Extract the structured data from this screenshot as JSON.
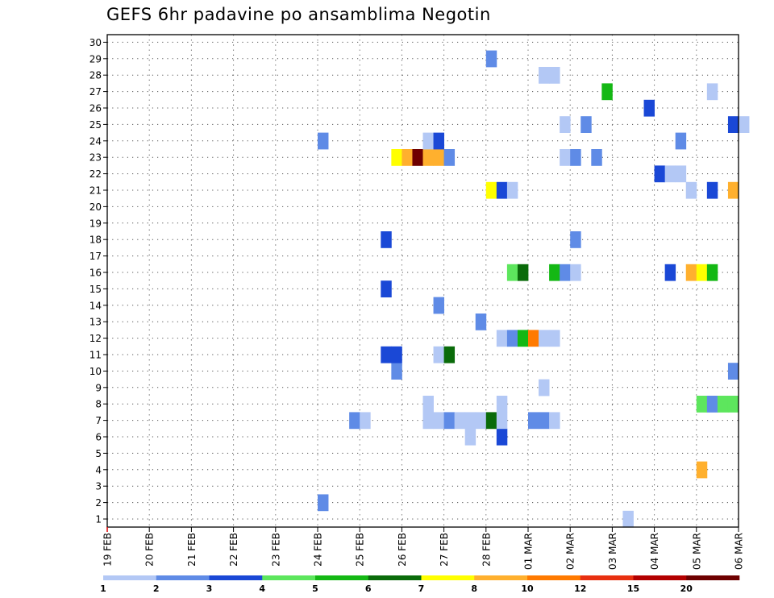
{
  "chart_data": {
    "type": "heatmap",
    "title": "GEFS 6hr padavine po ansamblima Negotin",
    "y_ticks": [
      "1",
      "2",
      "3",
      "4",
      "5",
      "6",
      "7",
      "8",
      "9",
      "10",
      "11",
      "12",
      "13",
      "14",
      "15",
      "16",
      "17",
      "18",
      "19",
      "20",
      "21",
      "22",
      "23",
      "24",
      "25",
      "26",
      "27",
      "28",
      "29",
      "30"
    ],
    "y_range": [
      0,
      30.5
    ],
    "x_ticks": [
      "19 FEB",
      "20 FEB",
      "21 FEB",
      "22 FEB",
      "23 FEB",
      "24 FEB",
      "25 FEB",
      "26 FEB",
      "27 FEB",
      "28 FEB",
      "01 MAR",
      "02 MAR",
      "03 MAR",
      "04 MAR",
      "05 MAR",
      "06 MAR"
    ],
    "x_range_days": [
      0,
      15
    ],
    "step_days": 0.25,
    "grid": true,
    "colorbar": {
      "ticks": [
        "1",
        "2",
        "3",
        "4",
        "5",
        "6",
        "7",
        "8",
        "10",
        "12",
        "15",
        "20"
      ],
      "colors": [
        "#b3c8f5",
        "#5f8be6",
        "#1a48d6",
        "#5de65d",
        "#14b814",
        "#0a6b0a",
        "#ffff00",
        "#ffb02e",
        "#ff7a00",
        "#e83010",
        "#b30000",
        "#6e0000"
      ]
    },
    "cells": [
      {
        "m": 1,
        "t": 12.25,
        "c": 0
      },
      {
        "m": 2,
        "t": 5.0,
        "c": 1
      },
      {
        "m": 4,
        "t": 14.0,
        "c": 7
      },
      {
        "m": 6,
        "t": 9.25,
        "c": 2
      },
      {
        "m": 6,
        "t": 8.5,
        "c": 0
      },
      {
        "m": 7,
        "t": 5.75,
        "c": 1
      },
      {
        "m": 7,
        "t": 6.0,
        "c": 0
      },
      {
        "m": 7,
        "t": 7.5,
        "c": 0
      },
      {
        "m": 7,
        "t": 7.75,
        "c": 0
      },
      {
        "m": 7,
        "t": 8.0,
        "c": 1
      },
      {
        "m": 7,
        "t": 8.25,
        "c": 0
      },
      {
        "m": 7,
        "t": 8.5,
        "c": 0
      },
      {
        "m": 7,
        "t": 8.75,
        "c": 0
      },
      {
        "m": 7,
        "t": 9.0,
        "c": 5
      },
      {
        "m": 7,
        "t": 9.25,
        "c": 0
      },
      {
        "m": 7,
        "t": 10.0,
        "c": 1
      },
      {
        "m": 7,
        "t": 10.25,
        "c": 1
      },
      {
        "m": 7,
        "t": 10.5,
        "c": 0
      },
      {
        "m": 8,
        "t": 7.5,
        "c": 0
      },
      {
        "m": 8,
        "t": 9.25,
        "c": 0
      },
      {
        "m": 8,
        "t": 14.0,
        "c": 3
      },
      {
        "m": 8,
        "t": 14.25,
        "c": 1
      },
      {
        "m": 8,
        "t": 14.5,
        "c": 3
      },
      {
        "m": 8,
        "t": 14.75,
        "c": 3
      },
      {
        "m": 9,
        "t": 10.25,
        "c": 0
      },
      {
        "m": 10,
        "t": 6.75,
        "c": 1
      },
      {
        "m": 10,
        "t": 14.75,
        "c": 1
      },
      {
        "m": 11,
        "t": 6.5,
        "c": 2
      },
      {
        "m": 11,
        "t": 6.75,
        "c": 2
      },
      {
        "m": 11,
        "t": 7.75,
        "c": 0
      },
      {
        "m": 11,
        "t": 8.0,
        "c": 5
      },
      {
        "m": 12,
        "t": 9.25,
        "c": 0
      },
      {
        "m": 12,
        "t": 9.5,
        "c": 1
      },
      {
        "m": 12,
        "t": 9.75,
        "c": 4
      },
      {
        "m": 12,
        "t": 10.0,
        "c": 8
      },
      {
        "m": 12,
        "t": 10.25,
        "c": 0
      },
      {
        "m": 12,
        "t": 10.5,
        "c": 0
      },
      {
        "m": 13,
        "t": 8.75,
        "c": 1
      },
      {
        "m": 14,
        "t": 7.75,
        "c": 1
      },
      {
        "m": 15,
        "t": 6.5,
        "c": 2
      },
      {
        "m": 16,
        "t": 9.5,
        "c": 3
      },
      {
        "m": 16,
        "t": 9.75,
        "c": 5
      },
      {
        "m": 16,
        "t": 10.5,
        "c": 4
      },
      {
        "m": 16,
        "t": 10.75,
        "c": 1
      },
      {
        "m": 16,
        "t": 11.0,
        "c": 0
      },
      {
        "m": 16,
        "t": 13.25,
        "c": 2
      },
      {
        "m": 16,
        "t": 13.75,
        "c": 7
      },
      {
        "m": 16,
        "t": 14.0,
        "c": 6
      },
      {
        "m": 16,
        "t": 14.25,
        "c": 4
      },
      {
        "m": 18,
        "t": 6.5,
        "c": 2
      },
      {
        "m": 18,
        "t": 11.0,
        "c": 1
      },
      {
        "m": 21,
        "t": 9.0,
        "c": 6
      },
      {
        "m": 21,
        "t": 9.25,
        "c": 2
      },
      {
        "m": 21,
        "t": 9.5,
        "c": 0
      },
      {
        "m": 21,
        "t": 13.75,
        "c": 0
      },
      {
        "m": 21,
        "t": 14.25,
        "c": 2
      },
      {
        "m": 21,
        "t": 14.75,
        "c": 7
      },
      {
        "m": 22,
        "t": 13.0,
        "c": 2
      },
      {
        "m": 22,
        "t": 13.25,
        "c": 0
      },
      {
        "m": 22,
        "t": 13.5,
        "c": 0
      },
      {
        "m": 23,
        "t": 6.75,
        "c": 6
      },
      {
        "m": 23,
        "t": 7.0,
        "c": 7
      },
      {
        "m": 23,
        "t": 7.25,
        "c": 11
      },
      {
        "m": 23,
        "t": 7.5,
        "c": 7
      },
      {
        "m": 23,
        "t": 7.75,
        "c": 7
      },
      {
        "m": 23,
        "t": 8.0,
        "c": 1
      },
      {
        "m": 23,
        "t": 10.75,
        "c": 0
      },
      {
        "m": 23,
        "t": 11.0,
        "c": 1
      },
      {
        "m": 23,
        "t": 11.5,
        "c": 1
      },
      {
        "m": 24,
        "t": 5.0,
        "c": 1
      },
      {
        "m": 24,
        "t": 7.5,
        "c": 0
      },
      {
        "m": 24,
        "t": 7.75,
        "c": 2
      },
      {
        "m": 24,
        "t": 13.5,
        "c": 1
      },
      {
        "m": 25,
        "t": 10.75,
        "c": 0
      },
      {
        "m": 25,
        "t": 11.25,
        "c": 1
      },
      {
        "m": 25,
        "t": 14.75,
        "c": 2
      },
      {
        "m": 25,
        "t": 15.0,
        "c": 0
      },
      {
        "m": 26,
        "t": 12.75,
        "c": 2
      },
      {
        "m": 27,
        "t": 11.75,
        "c": 4
      },
      {
        "m": 27,
        "t": 14.25,
        "c": 0
      },
      {
        "m": 28,
        "t": 10.25,
        "c": 0
      },
      {
        "m": 28,
        "t": 10.5,
        "c": 0
      },
      {
        "m": 29,
        "t": 9.0,
        "c": 1
      }
    ]
  }
}
